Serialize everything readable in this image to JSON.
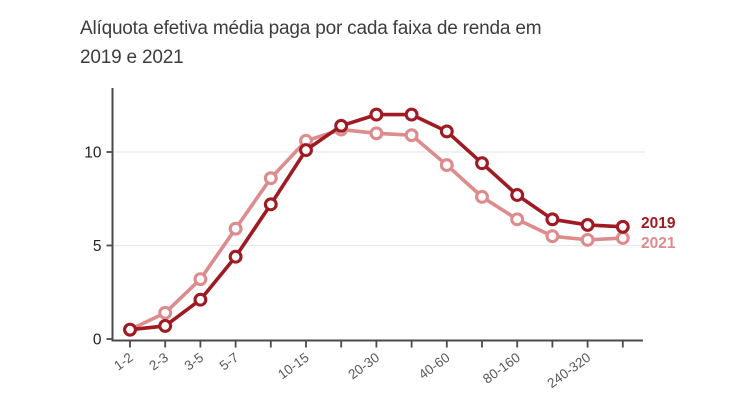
{
  "title": {
    "line1": "Alíquota efetiva média paga por cada faixa de renda em",
    "line2": "2019 e 2021"
  },
  "chart_data": {
    "type": "line",
    "categories": [
      "1-2",
      "2-3",
      "3-5",
      "5-7",
      "",
      "10-15",
      "",
      "20-30",
      "",
      "40-60",
      "",
      "80-160",
      "",
      "240-320",
      ""
    ],
    "series": [
      {
        "name": "2019",
        "color": "#9f1b23",
        "values": [
          0.5,
          0.7,
          2.1,
          4.4,
          7.2,
          10.1,
          11.4,
          12.0,
          12.0,
          11.1,
          9.4,
          7.7,
          6.4,
          6.1,
          6.0
        ]
      },
      {
        "name": "2021",
        "color": "#dd8b8d",
        "values": [
          0.5,
          1.4,
          3.2,
          5.9,
          8.6,
          10.6,
          11.2,
          11.0,
          10.9,
          9.3,
          7.6,
          6.4,
          5.5,
          5.3,
          5.4
        ]
      }
    ],
    "xlabel": "",
    "ylabel": "",
    "yticks": [
      0,
      5,
      10
    ],
    "ylim": [
      0,
      13.4
    ],
    "grid": "horizontal",
    "legend_position": "right-of-line-ends",
    "marker": "open-circle"
  },
  "colors": {
    "background": "#ffffff",
    "title_text": "#3d3d3d",
    "axis": "#4a4a4a",
    "y_tick_label": "#1f1f1f",
    "x_tick_label": "#595959",
    "gridline": "#e9e9e7",
    "marker_fill": "#ffffff"
  }
}
